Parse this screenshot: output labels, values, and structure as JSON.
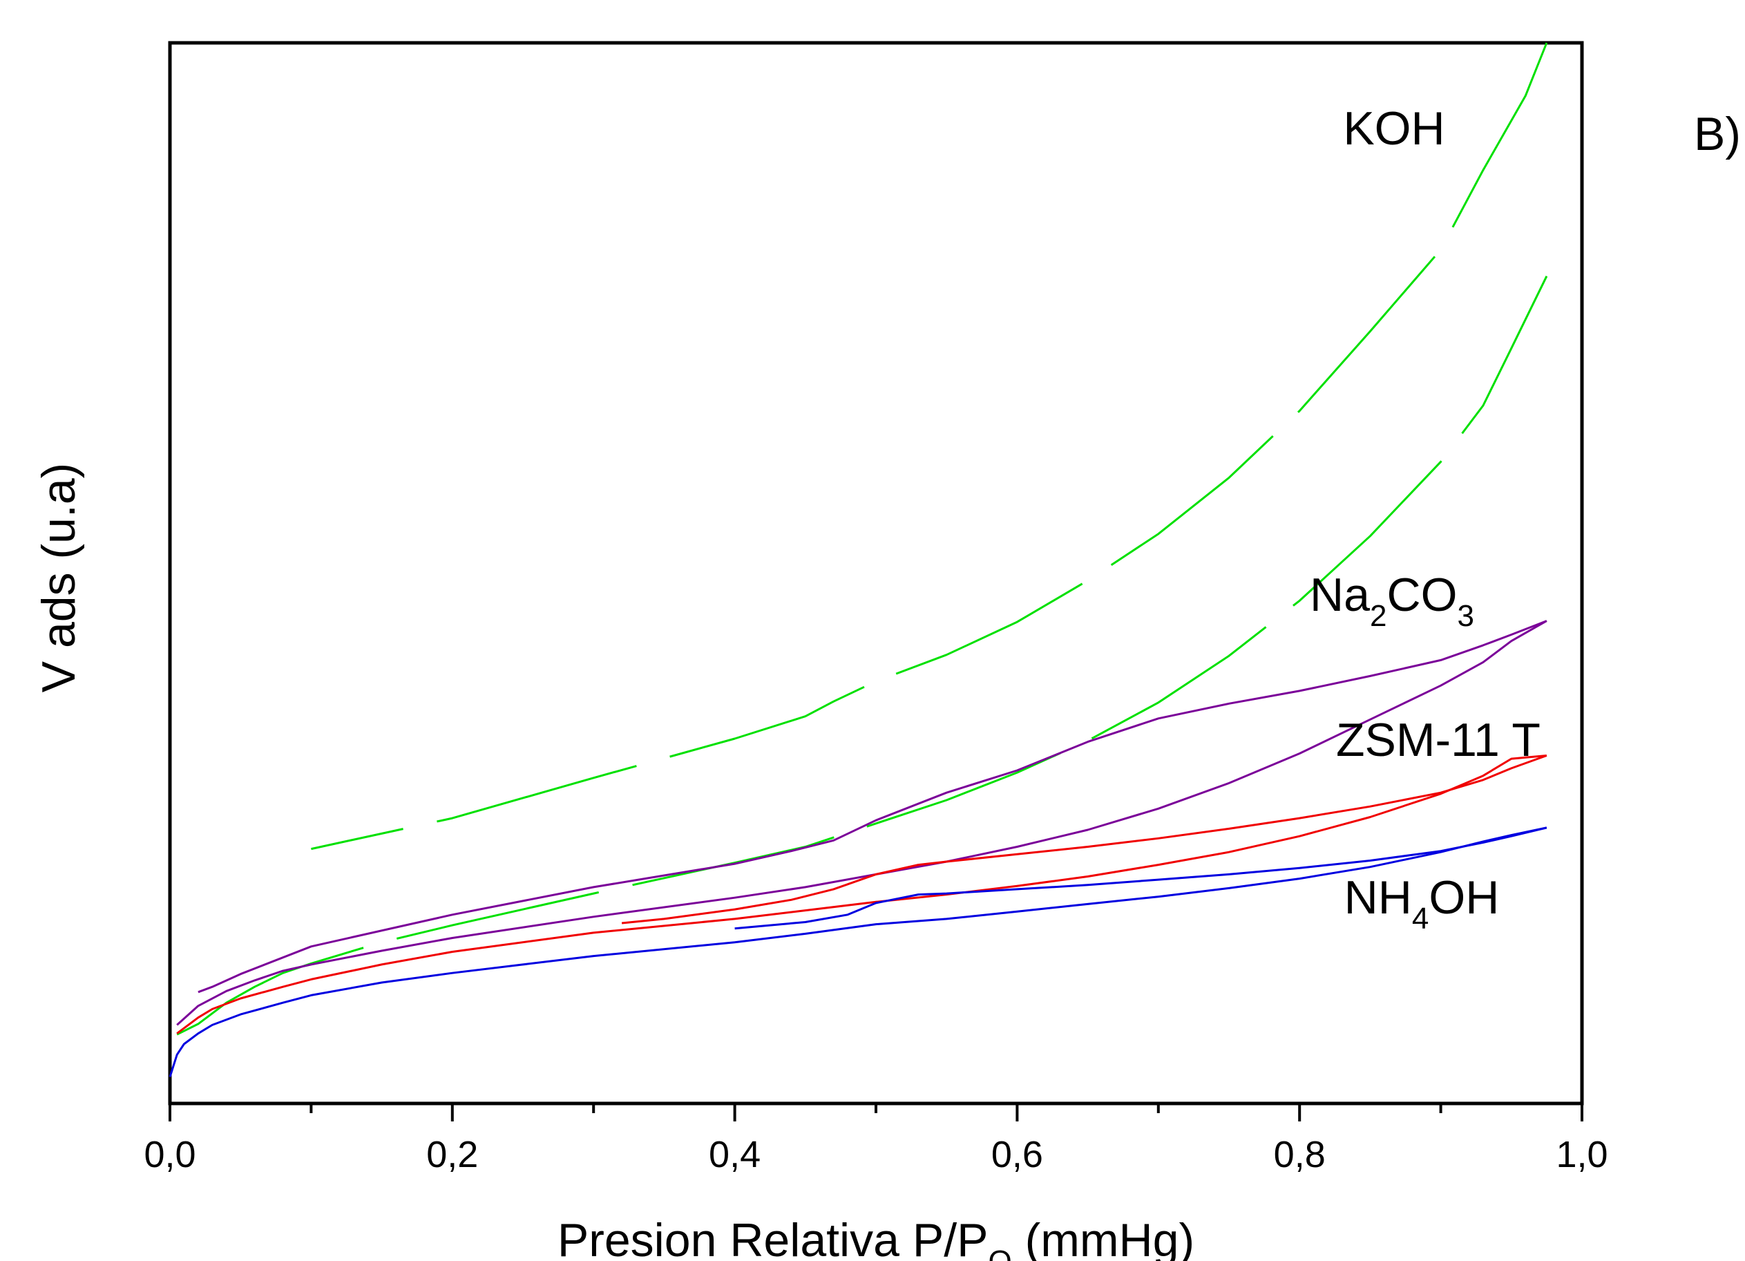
{
  "chart_data": {
    "type": "line",
    "panel_label": "B)",
    "xlabel": {
      "main": "Presion Relativa P/P",
      "sub": "O",
      "unit": " (mmHg)"
    },
    "ylabel": "V ads (u.a)",
    "xlim": [
      0.0,
      1.0
    ],
    "ylim": [
      0,
      100
    ],
    "x_ticks": [
      "0,0",
      "0,2",
      "0,4",
      "0,6",
      "0,8",
      "1,0"
    ],
    "y_ticks_labeled": false,
    "grid": false,
    "series": [
      {
        "name": "KOH",
        "label_parts": [
          {
            "t": "KOH"
          }
        ],
        "color": "#00e000",
        "dashed": true,
        "adsorption": [
          [
            0.005,
            6.5
          ],
          [
            0.02,
            7.5
          ],
          [
            0.04,
            9.5
          ],
          [
            0.06,
            11
          ],
          [
            0.08,
            12.3
          ],
          [
            0.1,
            13.2
          ],
          [
            0.15,
            15.2
          ],
          [
            0.2,
            16.8
          ],
          [
            0.3,
            19.8
          ],
          [
            0.4,
            22.7
          ],
          [
            0.45,
            24.2
          ],
          [
            0.5,
            26.4
          ],
          [
            0.55,
            28.6
          ],
          [
            0.6,
            31.2
          ],
          [
            0.65,
            34.2
          ],
          [
            0.7,
            37.8
          ],
          [
            0.75,
            42.2
          ],
          [
            0.8,
            47.4
          ],
          [
            0.85,
            53.5
          ],
          [
            0.9,
            60.5
          ],
          [
            0.93,
            65.8
          ],
          [
            0.95,
            71.2
          ],
          [
            0.975,
            78
          ]
        ],
        "desorption": [
          [
            0.975,
            100
          ],
          [
            0.96,
            95
          ],
          [
            0.93,
            88
          ],
          [
            0.9,
            80.5
          ],
          [
            0.85,
            72.8
          ],
          [
            0.8,
            65.3
          ],
          [
            0.75,
            59
          ],
          [
            0.7,
            53.7
          ],
          [
            0.65,
            49.3
          ],
          [
            0.6,
            45.4
          ],
          [
            0.55,
            42.3
          ],
          [
            0.5,
            39.8
          ],
          [
            0.47,
            37.9
          ],
          [
            0.45,
            36.5
          ],
          [
            0.4,
            34.4
          ],
          [
            0.3,
            30.7
          ],
          [
            0.2,
            26.9
          ],
          [
            0.1,
            24
          ]
        ]
      },
      {
        "name": "Na2CO3",
        "label_parts": [
          {
            "t": "Na"
          },
          {
            "t": "2",
            "sub": true
          },
          {
            "t": "CO"
          },
          {
            "t": "3",
            "sub": true
          }
        ],
        "color": "#7b0099",
        "dashed": false,
        "adsorption": [
          [
            0.005,
            7.4
          ],
          [
            0.02,
            9.2
          ],
          [
            0.04,
            10.6
          ],
          [
            0.06,
            11.6
          ],
          [
            0.08,
            12.5
          ],
          [
            0.1,
            13.1
          ],
          [
            0.15,
            14.4
          ],
          [
            0.2,
            15.6
          ],
          [
            0.3,
            17.6
          ],
          [
            0.4,
            19.4
          ],
          [
            0.45,
            20.4
          ],
          [
            0.5,
            21.6
          ],
          [
            0.55,
            22.8
          ],
          [
            0.6,
            24.2
          ],
          [
            0.65,
            25.8
          ],
          [
            0.7,
            27.8
          ],
          [
            0.75,
            30.2
          ],
          [
            0.8,
            33
          ],
          [
            0.85,
            36.2
          ],
          [
            0.9,
            39.4
          ],
          [
            0.93,
            41.6
          ],
          [
            0.95,
            43.6
          ],
          [
            0.975,
            45.5
          ]
        ],
        "desorption": [
          [
            0.975,
            45.5
          ],
          [
            0.95,
            44.2
          ],
          [
            0.93,
            43.2
          ],
          [
            0.9,
            41.8
          ],
          [
            0.85,
            40.3
          ],
          [
            0.8,
            38.9
          ],
          [
            0.75,
            37.7
          ],
          [
            0.7,
            36.3
          ],
          [
            0.65,
            34.1
          ],
          [
            0.6,
            31.4
          ],
          [
            0.55,
            29.3
          ],
          [
            0.5,
            26.7
          ],
          [
            0.47,
            24.8
          ],
          [
            0.44,
            23.8
          ],
          [
            0.4,
            22.6
          ],
          [
            0.3,
            20.4
          ],
          [
            0.2,
            17.8
          ],
          [
            0.1,
            14.8
          ],
          [
            0.05,
            12.2
          ],
          [
            0.03,
            11
          ],
          [
            0.02,
            10.5
          ]
        ]
      },
      {
        "name": "ZSM-11 T",
        "label_parts": [
          {
            "t": "ZSM-11 T"
          }
        ],
        "color": "#f00000",
        "dashed": false,
        "adsorption": [
          [
            0.005,
            6.6
          ],
          [
            0.02,
            8.1
          ],
          [
            0.03,
            8.9
          ],
          [
            0.05,
            9.9
          ],
          [
            0.08,
            11
          ],
          [
            0.1,
            11.7
          ],
          [
            0.15,
            13.1
          ],
          [
            0.2,
            14.3
          ],
          [
            0.3,
            16.1
          ],
          [
            0.4,
            17.4
          ],
          [
            0.45,
            18.2
          ],
          [
            0.5,
            19
          ],
          [
            0.55,
            19.7
          ],
          [
            0.6,
            20.5
          ],
          [
            0.65,
            21.4
          ],
          [
            0.7,
            22.5
          ],
          [
            0.75,
            23.7
          ],
          [
            0.8,
            25.2
          ],
          [
            0.85,
            27
          ],
          [
            0.9,
            29.2
          ],
          [
            0.93,
            30.9
          ],
          [
            0.95,
            32.5
          ],
          [
            0.975,
            32.8
          ]
        ],
        "desorption": [
          [
            0.975,
            32.8
          ],
          [
            0.95,
            31.6
          ],
          [
            0.93,
            30.5
          ],
          [
            0.9,
            29.3
          ],
          [
            0.85,
            28
          ],
          [
            0.8,
            26.9
          ],
          [
            0.75,
            25.9
          ],
          [
            0.7,
            25
          ],
          [
            0.65,
            24.2
          ],
          [
            0.6,
            23.5
          ],
          [
            0.55,
            22.8
          ],
          [
            0.53,
            22.5
          ],
          [
            0.5,
            21.6
          ],
          [
            0.47,
            20.2
          ],
          [
            0.44,
            19.2
          ],
          [
            0.4,
            18.3
          ],
          [
            0.35,
            17.4
          ],
          [
            0.32,
            17
          ]
        ]
      },
      {
        "name": "NH4OH",
        "label_parts": [
          {
            "t": "NH"
          },
          {
            "t": "4",
            "sub": true
          },
          {
            "t": "OH"
          }
        ],
        "color": "#0000e0",
        "dashed": false,
        "adsorption": [
          [
            0.0,
            2.5
          ],
          [
            0.005,
            4.6
          ],
          [
            0.01,
            5.6
          ],
          [
            0.02,
            6.6
          ],
          [
            0.03,
            7.4
          ],
          [
            0.05,
            8.4
          ],
          [
            0.08,
            9.5
          ],
          [
            0.1,
            10.2
          ],
          [
            0.15,
            11.4
          ],
          [
            0.2,
            12.3
          ],
          [
            0.3,
            13.9
          ],
          [
            0.4,
            15.2
          ],
          [
            0.45,
            16
          ],
          [
            0.5,
            16.9
          ],
          [
            0.55,
            17.4
          ],
          [
            0.6,
            18.1
          ],
          [
            0.65,
            18.8
          ],
          [
            0.7,
            19.5
          ],
          [
            0.75,
            20.3
          ],
          [
            0.8,
            21.2
          ],
          [
            0.85,
            22.3
          ],
          [
            0.9,
            23.7
          ],
          [
            0.93,
            24.7
          ],
          [
            0.95,
            25.3
          ],
          [
            0.975,
            26
          ]
        ],
        "desorption": [
          [
            0.975,
            26
          ],
          [
            0.95,
            25.2
          ],
          [
            0.93,
            24.6
          ],
          [
            0.9,
            23.8
          ],
          [
            0.85,
            22.9
          ],
          [
            0.8,
            22.2
          ],
          [
            0.75,
            21.6
          ],
          [
            0.7,
            21.1
          ],
          [
            0.65,
            20.6
          ],
          [
            0.6,
            20.2
          ],
          [
            0.55,
            19.8
          ],
          [
            0.53,
            19.7
          ],
          [
            0.5,
            18.9
          ],
          [
            0.48,
            17.8
          ],
          [
            0.45,
            17.1
          ],
          [
            0.4,
            16.5
          ]
        ]
      }
    ]
  }
}
